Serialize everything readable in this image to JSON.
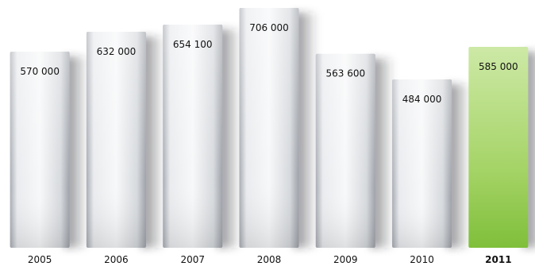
{
  "chart_data": {
    "type": "bar",
    "title": "",
    "xlabel": "",
    "ylabel": "",
    "categories": [
      "2005",
      "2006",
      "2007",
      "2008",
      "2009",
      "2010",
      "2011"
    ],
    "values": [
      570000,
      632000,
      654100,
      706000,
      563600,
      484000,
      585000
    ],
    "value_labels": [
      "570 000",
      "632 000",
      "654 100",
      "706 000",
      "563 600",
      "484 000",
      "585 000"
    ],
    "highlight_category": "2011",
    "ylim": [
      0,
      706000
    ],
    "grid": false,
    "legend": "none",
    "colors": {
      "bar_light": "#f2f3f5",
      "bar_mid": "#c9ccd1",
      "bar_dark": "#9ea2a9",
      "shadow": "#2a2c30",
      "highlight_light": "#cde9a6",
      "highlight_dark": "#7fbf3a",
      "text": "#111111"
    }
  }
}
